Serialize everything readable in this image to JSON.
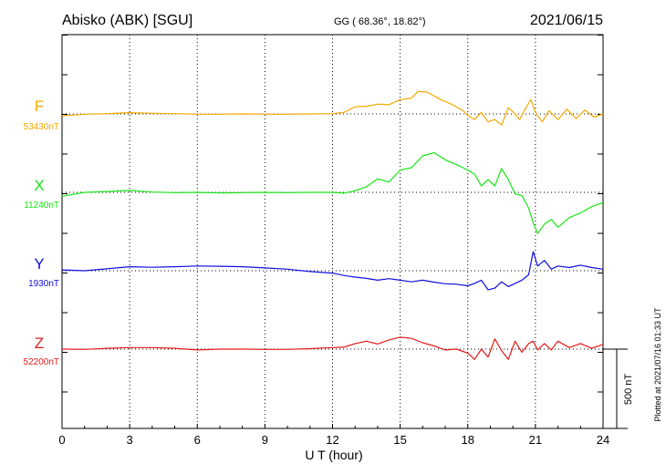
{
  "header": {
    "station": "Abisko (ABK)  [SGU]",
    "coords": "GG ( 68.36°,  18.82°)",
    "date": "2021/06/15"
  },
  "footer": {
    "plotted": "Plotted at 2021/07/16 01:33 UT"
  },
  "scale_bar": {
    "label": "500 nT",
    "value_nT": 500
  },
  "colors": {
    "F": "#f5a800",
    "X": "#17e617",
    "Y": "#1010dd",
    "Z": "#e41a1a"
  },
  "chart_data": {
    "type": "line",
    "title": "Abisko (ABK)  [SGU]",
    "xlabel": "U T (hour)",
    "xlim": [
      0,
      24
    ],
    "xticks": [
      "0",
      "3",
      "6",
      "9",
      "12",
      "15",
      "18",
      "21",
      "24"
    ],
    "units": "nT",
    "series": [
      {
        "name": "F",
        "baseline_label": "53430nT",
        "baseline": 53430,
        "x": [
          0,
          1,
          2,
          3,
          4,
          5,
          6,
          7,
          8,
          9,
          10,
          11,
          12,
          12.5,
          13,
          13.5,
          14,
          14.5,
          15,
          15.5,
          15.8,
          16.2,
          16.8,
          17.3,
          17.8,
          18.0,
          18.3,
          18.6,
          18.9,
          19.2,
          19.5,
          19.8,
          20.1,
          20.3,
          20.6,
          20.8,
          21.0,
          21.3,
          21.6,
          22.0,
          22.4,
          22.8,
          23.2,
          23.6,
          24
        ],
        "values": [
          53418,
          53428,
          53432,
          53438,
          53434,
          53432,
          53428,
          53428,
          53430,
          53428,
          53428,
          53430,
          53432,
          53440,
          53475,
          53478,
          53492,
          53488,
          53520,
          53530,
          53572,
          53568,
          53520,
          53490,
          53450,
          53420,
          53395,
          53440,
          53380,
          53395,
          53360,
          53470,
          53430,
          53395,
          53475,
          53520,
          53440,
          53380,
          53450,
          53395,
          53460,
          53400,
          53455,
          53410,
          53430
        ]
      },
      {
        "name": "X",
        "baseline_label": "11240nT",
        "baseline": 11240,
        "x": [
          0,
          1,
          2,
          3,
          4,
          5,
          6,
          7,
          8,
          9,
          10,
          11,
          12,
          12.5,
          13,
          13.5,
          14,
          14.5,
          15,
          15.5,
          16,
          16.5,
          17,
          17.5,
          18,
          18.3,
          18.6,
          18.9,
          19.2,
          19.5,
          19.8,
          20.1,
          20.4,
          20.7,
          20.9,
          21.1,
          21.4,
          21.7,
          22,
          22.5,
          23,
          23.5,
          24
        ],
        "values": [
          11215,
          11240,
          11245,
          11252,
          11242,
          11238,
          11240,
          11236,
          11238,
          11240,
          11238,
          11240,
          11240,
          11235,
          11250,
          11275,
          11325,
          11305,
          11380,
          11395,
          11470,
          11490,
          11445,
          11415,
          11380,
          11355,
          11280,
          11320,
          11280,
          11390,
          11320,
          11230,
          11220,
          11140,
          11050,
          10980,
          11040,
          11070,
          11020,
          11080,
          11110,
          11150,
          11175
        ]
      },
      {
        "name": "Y",
        "baseline_label": "1930nT",
        "baseline": 1930,
        "x": [
          0,
          1,
          2,
          3,
          4,
          5,
          6,
          7,
          8,
          9,
          10,
          11,
          12,
          12.5,
          13,
          13.5,
          14,
          14.5,
          15,
          15.5,
          16,
          16.5,
          17,
          17.5,
          18,
          18.3,
          18.6,
          18.9,
          19.2,
          19.5,
          19.8,
          20.1,
          20.4,
          20.7,
          20.9,
          21.1,
          21.4,
          21.7,
          22,
          22.5,
          23,
          23.5,
          24
        ],
        "values": [
          1935,
          1930,
          1942,
          1955,
          1952,
          1955,
          1960,
          1958,
          1955,
          1948,
          1940,
          1925,
          1915,
          1900,
          1890,
          1882,
          1870,
          1880,
          1870,
          1860,
          1870,
          1858,
          1848,
          1845,
          1835,
          1850,
          1870,
          1810,
          1820,
          1860,
          1830,
          1850,
          1870,
          1905,
          2050,
          1960,
          1995,
          1940,
          1960,
          1950,
          1965,
          1950,
          1940
        ]
      },
      {
        "name": "Z",
        "baseline_label": "52200nT",
        "baseline": 52200,
        "x": [
          0,
          1,
          2,
          3,
          4,
          5,
          6,
          7,
          8,
          9,
          10,
          11,
          12,
          12.5,
          13,
          13.5,
          14,
          14.5,
          15,
          15.5,
          16,
          16.5,
          17,
          17.5,
          18,
          18.3,
          18.6,
          18.9,
          19.2,
          19.5,
          19.8,
          20.1,
          20.4,
          20.7,
          20.9,
          21.1,
          21.4,
          21.7,
          22,
          22.5,
          23,
          23.5,
          24
        ],
        "values": [
          52200,
          52198,
          52205,
          52210,
          52210,
          52205,
          52195,
          52200,
          52200,
          52198,
          52198,
          52203,
          52210,
          52212,
          52235,
          52250,
          52232,
          52258,
          52275,
          52268,
          52240,
          52220,
          52195,
          52200,
          52175,
          52135,
          52200,
          52150,
          52265,
          52190,
          52135,
          52250,
          52180,
          52235,
          52250,
          52195,
          52235,
          52195,
          52250,
          52210,
          52235,
          52205,
          52230
        ]
      }
    ],
    "grid": true,
    "legend": "left"
  }
}
